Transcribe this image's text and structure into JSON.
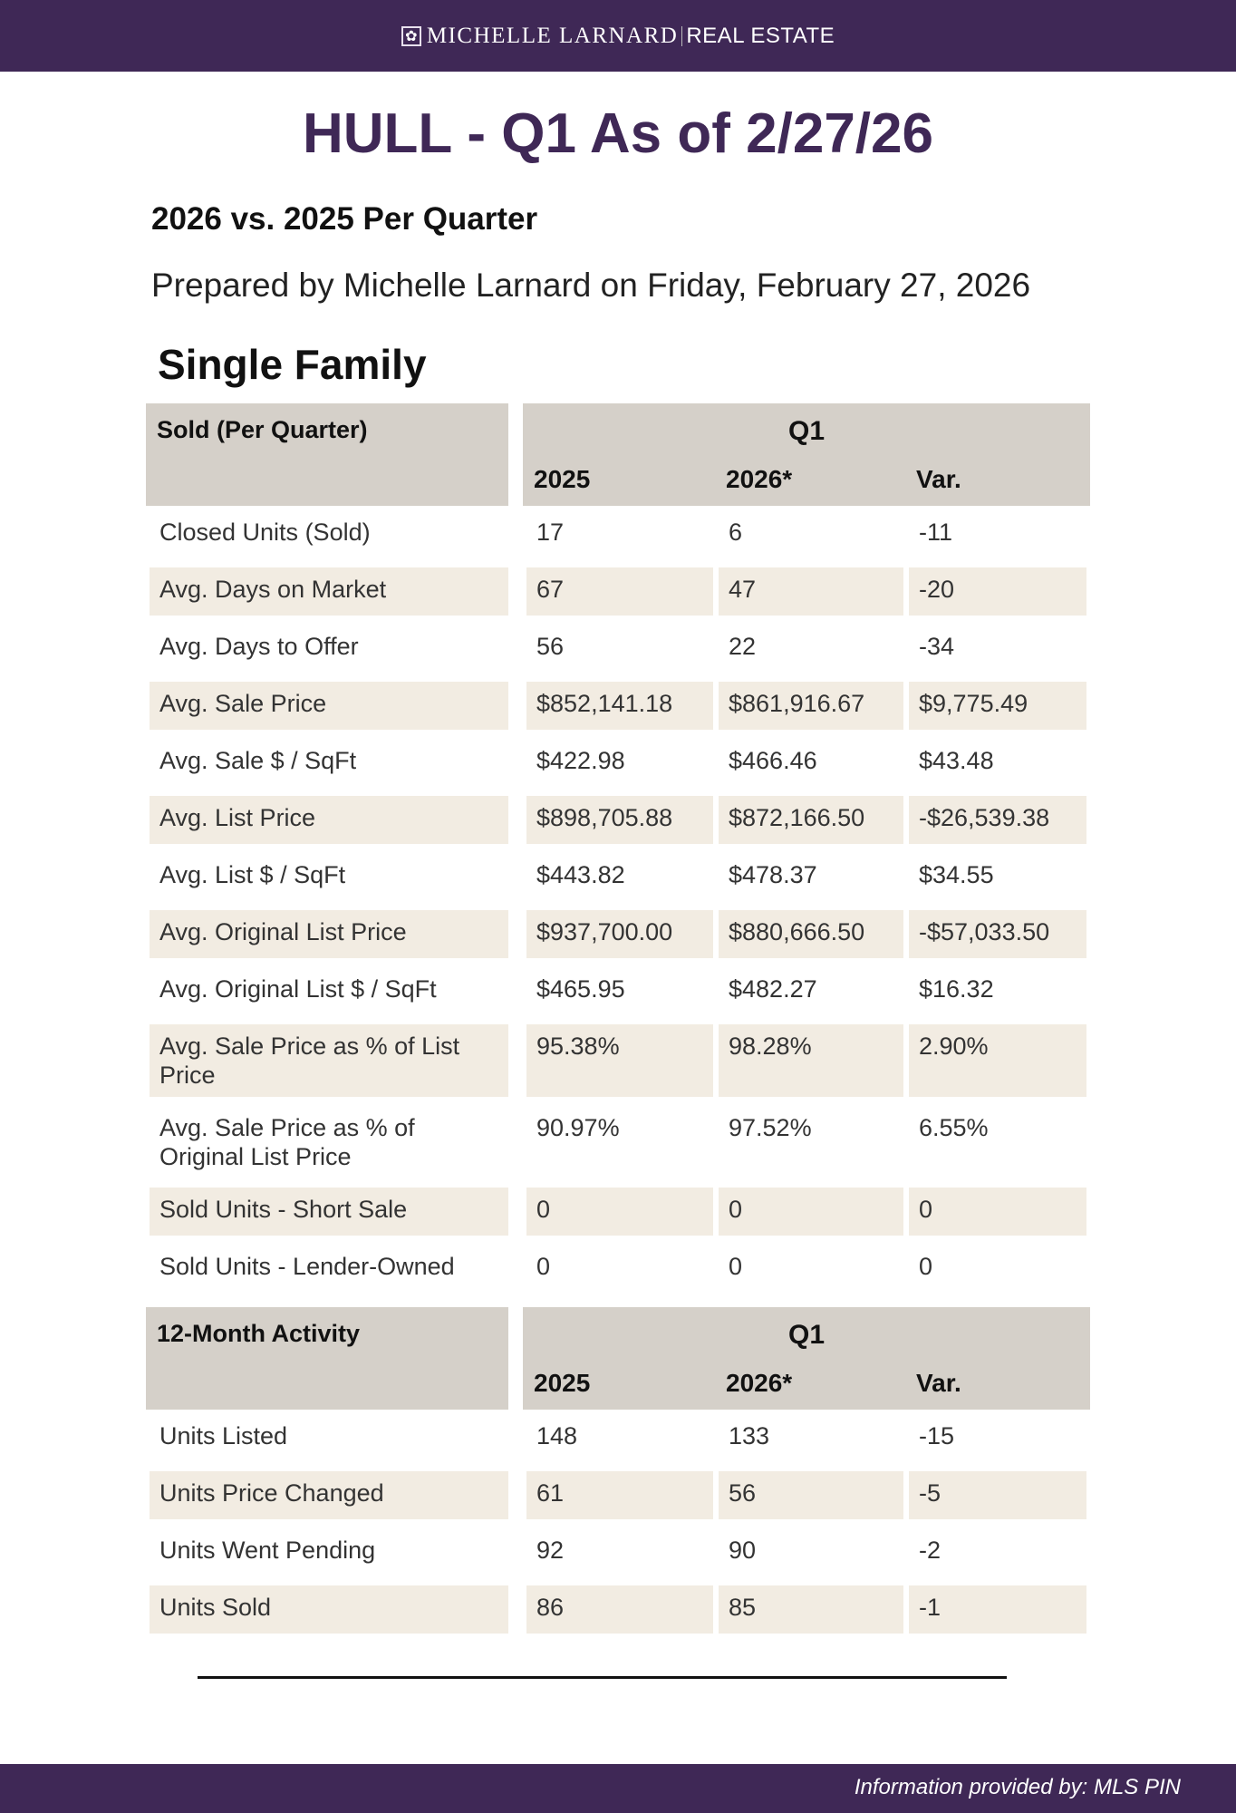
{
  "brand": {
    "name": "MICHELLE LARNARD",
    "suffix": "REAL ESTATE"
  },
  "title": "HULL - Q1 As of 2/27/26",
  "subtitle": "2026 vs. 2025 Per Quarter",
  "prepared": "Prepared by Michelle Larnard on Friday, February 27, 2026",
  "section": "Single Family",
  "sold": {
    "header": "Sold (Per Quarter)",
    "period": "Q1",
    "cols": [
      "2025",
      "2026*",
      "Var."
    ],
    "rows": [
      [
        "Closed Units (Sold)",
        "17",
        "6",
        "-11"
      ],
      [
        "Avg. Days on Market",
        "67",
        "47",
        "-20"
      ],
      [
        "Avg. Days to Offer",
        "56",
        "22",
        "-34"
      ],
      [
        "Avg. Sale Price",
        "$852,141.18",
        "$861,916.67",
        "$9,775.49"
      ],
      [
        "Avg. Sale $ / SqFt",
        "$422.98",
        "$466.46",
        "$43.48"
      ],
      [
        "Avg. List Price",
        "$898,705.88",
        "$872,166.50",
        "-$26,539.38"
      ],
      [
        "Avg. List $ / SqFt",
        "$443.82",
        "$478.37",
        "$34.55"
      ],
      [
        "Avg. Original List Price",
        "$937,700.00",
        "$880,666.50",
        "-$57,033.50"
      ],
      [
        "Avg. Original List $ / SqFt",
        "$465.95",
        "$482.27",
        "$16.32"
      ],
      [
        "Avg. Sale Price as % of List Price",
        "95.38%",
        "98.28%",
        "2.90%"
      ],
      [
        "Avg. Sale Price as % of Original List Price",
        "90.97%",
        "97.52%",
        "6.55%"
      ],
      [
        "Sold Units - Short Sale",
        "0",
        "0",
        "0"
      ],
      [
        "Sold Units - Lender-Owned",
        "0",
        "0",
        "0"
      ]
    ]
  },
  "activity": {
    "header": "12-Month Activity",
    "period": "Q1",
    "cols": [
      "2025",
      "2026*",
      "Var."
    ],
    "rows": [
      [
        "Units Listed",
        "148",
        "133",
        "-15"
      ],
      [
        "Units Price Changed",
        "61",
        "56",
        "-5"
      ],
      [
        "Units Went Pending",
        "92",
        "90",
        "-2"
      ],
      [
        "Units Sold",
        "86",
        "85",
        "-1"
      ]
    ]
  },
  "footer": "Information provided by: MLS PIN"
}
